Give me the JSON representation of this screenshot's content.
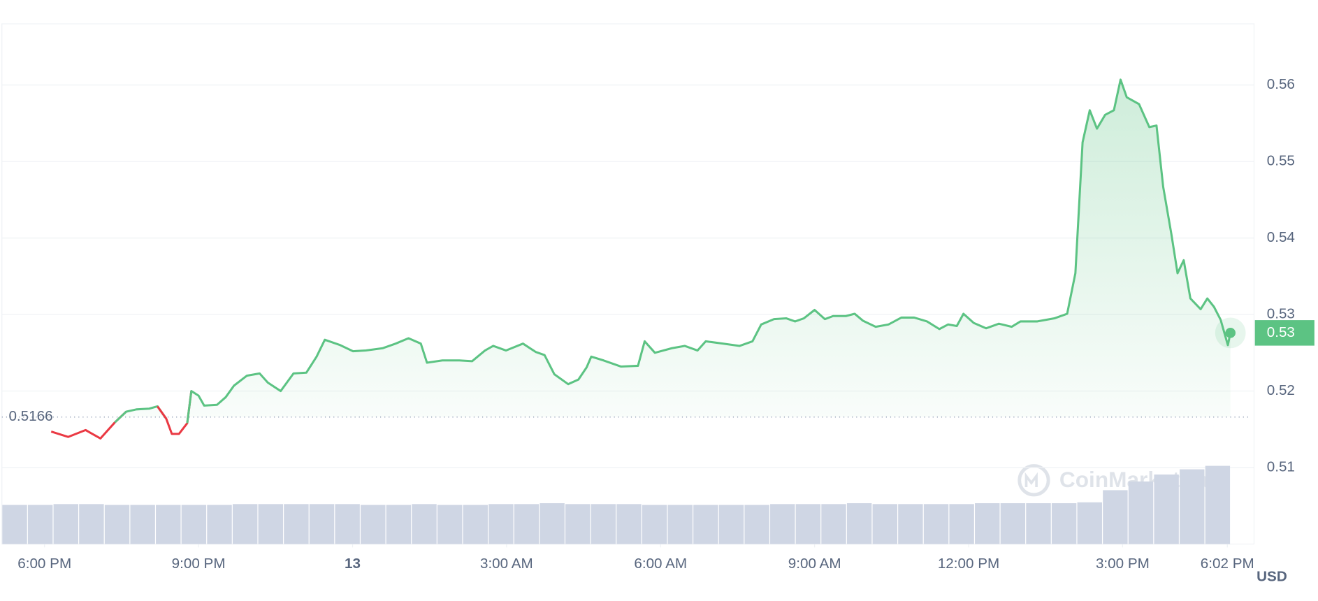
{
  "chart_data": {
    "type": "line",
    "x": [
      18.13,
      18.46,
      18.8,
      19.09,
      19.37,
      19.59,
      19.79,
      20.04,
      20.2,
      20.37,
      20.48,
      20.62,
      20.78,
      20.86,
      21.0,
      21.11,
      21.36,
      21.53,
      21.69,
      21.94,
      22.19,
      22.35,
      22.6,
      22.85,
      23.1,
      23.3,
      23.46,
      23.76,
      24.01,
      24.26,
      24.59,
      24.84,
      25.09,
      25.33,
      25.45,
      25.75,
      26.08,
      26.33,
      26.58,
      26.74,
      26.99,
      27.32,
      27.57,
      27.74,
      27.93,
      28.2,
      28.4,
      28.56,
      28.65,
      28.89,
      29.23,
      29.56,
      29.69,
      29.89,
      30.22,
      30.47,
      30.72,
      30.88,
      31.21,
      31.54,
      31.79,
      31.96,
      32.21,
      32.45,
      32.62,
      32.79,
      33.0,
      33.2,
      33.36,
      33.61,
      33.78,
      33.94,
      34.19,
      34.44,
      34.69,
      34.94,
      35.19,
      35.43,
      35.6,
      35.77,
      35.9,
      36.1,
      36.34,
      36.59,
      36.84,
      37.01,
      37.34,
      37.67,
      37.92,
      38.08,
      38.22,
      38.36,
      38.5,
      38.66,
      38.83,
      38.96,
      39.08,
      39.32,
      39.52,
      39.66,
      39.79,
      39.95,
      40.07,
      40.19,
      40.32,
      40.52,
      40.65,
      40.78,
      40.91,
      41.05,
      41.1
    ],
    "series": [
      {
        "color": "#5cc383",
        "down_color": "#ea3943",
        "values": [
          0.5147,
          0.514,
          0.5149,
          0.5138,
          0.5159,
          0.5173,
          0.5176,
          0.5177,
          0.518,
          0.5164,
          0.5144,
          0.5144,
          0.5158,
          0.52,
          0.5194,
          0.5181,
          0.5182,
          0.5192,
          0.5207,
          0.522,
          0.5223,
          0.5211,
          0.52,
          0.5223,
          0.5224,
          0.5245,
          0.5267,
          0.526,
          0.5252,
          0.5253,
          0.5256,
          0.5262,
          0.5269,
          0.5262,
          0.5237,
          0.524,
          0.524,
          0.5239,
          0.5253,
          0.5259,
          0.5253,
          0.5262,
          0.5251,
          0.5247,
          0.5222,
          0.5209,
          0.5215,
          0.5231,
          0.5245,
          0.524,
          0.5232,
          0.5233,
          0.5265,
          0.525,
          0.5256,
          0.5259,
          0.5253,
          0.5265,
          0.5262,
          0.5259,
          0.5265,
          0.5287,
          0.5294,
          0.5295,
          0.5291,
          0.5295,
          0.5306,
          0.5294,
          0.5298,
          0.5298,
          0.5301,
          0.5292,
          0.5284,
          0.5287,
          0.5296,
          0.5296,
          0.5291,
          0.5281,
          0.5287,
          0.5285,
          0.5301,
          0.5289,
          0.5282,
          0.5288,
          0.5284,
          0.5291,
          0.5291,
          0.5295,
          0.5301,
          0.5354,
          0.5525,
          0.5567,
          0.5543,
          0.5561,
          0.5567,
          0.5607,
          0.5584,
          0.5575,
          0.5545,
          0.5547,
          0.5467,
          0.5405,
          0.5354,
          0.5371,
          0.5321,
          0.5307,
          0.5321,
          0.531,
          0.5293,
          0.526,
          0.5276
        ]
      }
    ],
    "volume": {
      "color": "#cfd6e4",
      "values": [
        45,
        45,
        46,
        46,
        45,
        45,
        45,
        45,
        45,
        46,
        46,
        46,
        46,
        46,
        45,
        45,
        46,
        45,
        45,
        46,
        46,
        47,
        46,
        46,
        46,
        45,
        45,
        45,
        45,
        45,
        46,
        46,
        46,
        47,
        46,
        46,
        46,
        46,
        47,
        47,
        47,
        47,
        48,
        62,
        72,
        80,
        86,
        90
      ]
    },
    "baseline": 0.5166,
    "current_price": {
      "value": 0.5276,
      "label": "0.53"
    },
    "xlim": [
      17.17,
      41.56
    ],
    "xticks": [
      {
        "value": 18,
        "label": "6:00 PM"
      },
      {
        "value": 21,
        "label": "9:00 PM"
      },
      {
        "value": 24,
        "label": "13"
      },
      {
        "value": 27,
        "label": "3:00 AM"
      },
      {
        "value": 30,
        "label": "6:00 AM"
      },
      {
        "value": 33,
        "label": "9:00 AM"
      },
      {
        "value": 36,
        "label": "12:00 PM"
      },
      {
        "value": 39,
        "label": "3:00 PM"
      },
      {
        "value": 41.04,
        "label": "6:02 PM"
      }
    ],
    "ylim": [
      0.5,
      0.568
    ],
    "yticks": [
      0.51,
      0.52,
      0.53,
      0.54,
      0.55,
      0.56
    ],
    "grid": true,
    "currency": "USD",
    "watermark": "CoinMarketCap"
  }
}
